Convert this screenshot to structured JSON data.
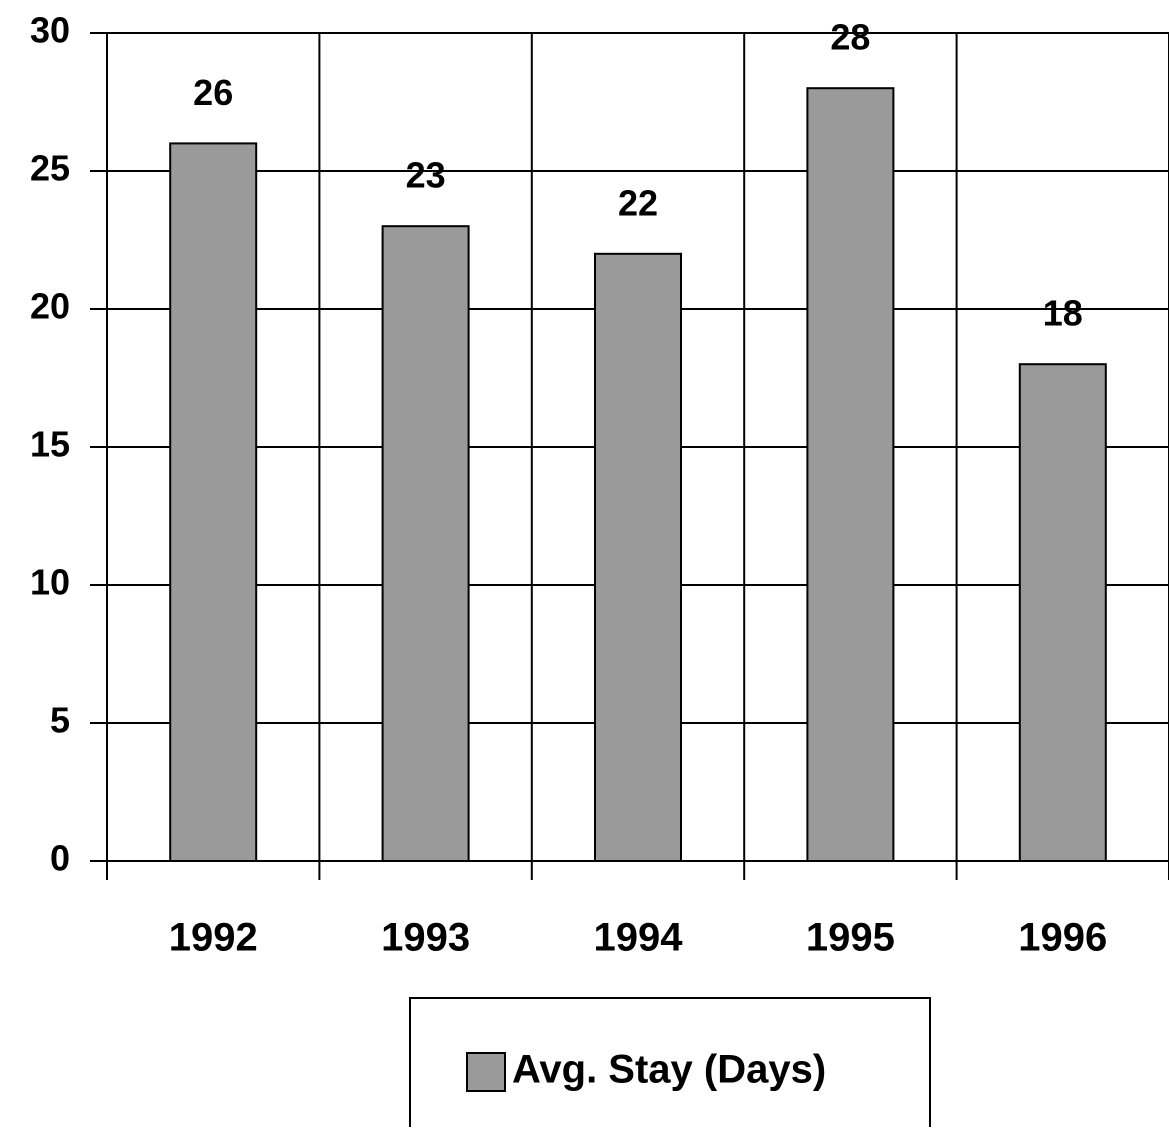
{
  "chart_data": {
    "type": "bar",
    "categories": [
      "1992",
      "1993",
      "1994",
      "1995",
      "1996"
    ],
    "series": [
      {
        "name": "Avg. Stay (Days)",
        "color": "#9a9a9a",
        "values": [
          26,
          23,
          22,
          28,
          18
        ]
      }
    ],
    "ylim": [
      0,
      30
    ],
    "yticks": [
      0,
      5,
      10,
      15,
      20,
      25,
      30
    ],
    "grid": true,
    "legend": "bottom"
  }
}
